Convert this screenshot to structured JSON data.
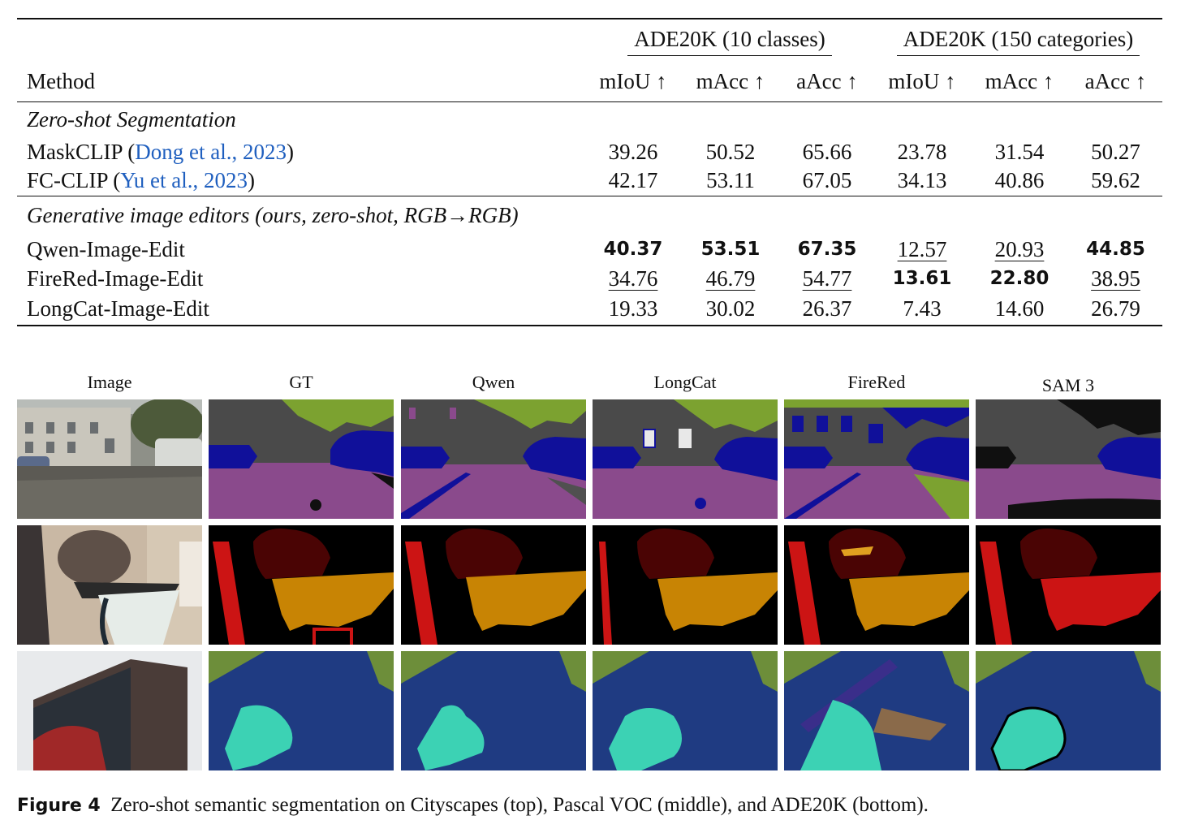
{
  "table": {
    "group_headers": [
      "ADE20K (10 classes)",
      "ADE20K (150 categories)"
    ],
    "method_header": "Method",
    "metric_headers": [
      "mIoU ↑",
      "mAcc ↑",
      "aAcc ↑",
      "mIoU ↑",
      "mAcc ↑",
      "aAcc ↑"
    ],
    "sections": [
      {
        "title": "Zero-shot Segmentation",
        "rows": [
          {
            "method": "MaskCLIP",
            "cite_author": "Dong et al.",
            "cite_year": "2023",
            "values": [
              "39.26",
              "50.52",
              "65.66",
              "23.78",
              "31.54",
              "50.27"
            ]
          },
          {
            "method": "FC-CLIP",
            "cite_author": "Yu et al.",
            "cite_year": "2023",
            "values": [
              "42.17",
              "53.11",
              "67.05",
              "34.13",
              "40.86",
              "59.62"
            ]
          }
        ]
      },
      {
        "title": "Generative image editors (ours, zero-shot, RGB→RGB)",
        "rows": [
          {
            "method": "Qwen-Image-Edit",
            "values": [
              "40.37",
              "53.51",
              "67.35",
              "12.57",
              "20.93",
              "44.85"
            ],
            "styles": [
              "bold",
              "bold",
              "bold",
              "underline",
              "underline",
              "bold"
            ]
          },
          {
            "method": "FireRed-Image-Edit",
            "values": [
              "34.76",
              "46.79",
              "54.77",
              "13.61",
              "22.80",
              "38.95"
            ],
            "styles": [
              "underline",
              "underline",
              "underline",
              "bold",
              "bold",
              "underline"
            ]
          },
          {
            "method": "LongCat-Image-Edit",
            "values": [
              "19.33",
              "30.02",
              "26.37",
              "7.43",
              "14.60",
              "26.79"
            ],
            "styles": [
              "",
              "",
              "",
              "",
              "",
              ""
            ]
          }
        ]
      }
    ]
  },
  "figure": {
    "column_titles": [
      "Image",
      "GT",
      "Qwen",
      "LongCat",
      "FireRed",
      "SAM 3"
    ],
    "datasets": [
      "Cityscapes",
      "Pascal VOC",
      "ADE20K"
    ]
  },
  "caption": {
    "label": "Figure 4",
    "text": "Zero-shot semantic segmentation on Cityscapes (top), Pascal VOC (middle), and ADE20K (bottom)."
  },
  "colors": {
    "road": "#8a4a8c",
    "building": "#4a4a4a",
    "vegetation": "#7ca230",
    "car": "#10109a",
    "cat": "#4a0404",
    "chair": "#cc1414",
    "table": "#c88404",
    "ade_building": "#1f3b82",
    "ade_sky": "#6d8e3a",
    "ade_tree": "#3cd2b4"
  }
}
